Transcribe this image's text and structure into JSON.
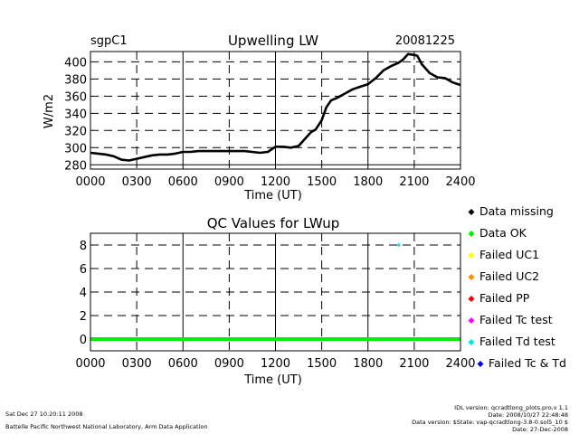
{
  "chart_data": [
    {
      "type": "line",
      "site": "sgpC1",
      "title": "Upwelling LW",
      "date": "20081225",
      "ylabel": "W/m2",
      "xlabel": "Time (UT)",
      "xlim": [
        0,
        2400
      ],
      "ylim": [
        275,
        412
      ],
      "yticks": [
        280,
        300,
        320,
        340,
        360,
        380,
        400
      ],
      "xtick_labels": [
        "0000",
        "0300",
        "0600",
        "0900",
        "1200",
        "1500",
        "1800",
        "2100",
        "2400"
      ],
      "grid": true,
      "series": [
        {
          "color": "#000000",
          "x": [
            0,
            50,
            100,
            150,
            200,
            250,
            300,
            350,
            400,
            450,
            500,
            550,
            600,
            650,
            700,
            800,
            900,
            1000,
            1100,
            1150,
            1200,
            1250,
            1300,
            1350,
            1400,
            1430,
            1460,
            1500,
            1530,
            1560,
            1600,
            1650,
            1700,
            1750,
            1800,
            1850,
            1900,
            1950,
            2000,
            2030,
            2060,
            2100,
            2120,
            2150,
            2200,
            2250,
            2300,
            2350,
            2400
          ],
          "y": [
            294,
            293,
            292,
            290,
            286,
            285,
            287,
            289,
            291,
            292,
            292,
            293,
            295,
            295,
            296,
            296,
            296,
            296,
            294,
            295,
            301,
            301,
            300,
            302,
            312,
            318,
            321,
            332,
            347,
            355,
            358,
            363,
            368,
            371,
            374,
            381,
            390,
            395,
            399,
            403,
            409,
            408,
            407,
            397,
            387,
            382,
            381,
            376,
            373
          ]
        }
      ]
    },
    {
      "type": "scatter",
      "title": "QC Values for LWup",
      "xlabel": "Time (UT)",
      "xlim": [
        0,
        2400
      ],
      "ylim": [
        -1,
        9
      ],
      "yticks": [
        0,
        2,
        4,
        6,
        8
      ],
      "xtick_labels": [
        "0000",
        "0300",
        "0600",
        "0900",
        "1200",
        "1500",
        "1800",
        "2100",
        "2400"
      ],
      "grid": true,
      "series": [
        {
          "name": "Data OK",
          "color": "#00ee00",
          "x": [
            0,
            2400
          ],
          "y": [
            0,
            0
          ]
        },
        {
          "name": "Failed Td test",
          "color": "#00e5e5",
          "x": [
            2000
          ],
          "y": [
            8
          ]
        }
      ]
    }
  ],
  "legend": {
    "items": [
      {
        "label": "Data missing",
        "color": "#000000"
      },
      {
        "label": "Data OK",
        "color": "#00ee00"
      },
      {
        "label": "Failed UC1",
        "color": "#ffff00"
      },
      {
        "label": "Failed UC2",
        "color": "#ff8c00"
      },
      {
        "label": "Failed PP",
        "color": "#ee0000"
      },
      {
        "label": "Failed Tc test",
        "color": "#ff00ff"
      },
      {
        "label": "Failed Td test",
        "color": "#00e5e5"
      },
      {
        "label": "Failed Tc & Td",
        "color": "#0000ee"
      }
    ]
  },
  "footer": {
    "timestamp": "Sat Dec 27 10:20:11 2008",
    "lab": "Battelle Pacific Northwest National Laboratory, Arm Data Application",
    "idl_version": "IDL version: qcradtlong_plots.pro,v 1.1",
    "idl_date": "Date: 2008/10/27 22:48:48",
    "data_version": "Data version: $State: vap-qcradtlong-3.8-0.sol5_10 $",
    "data_date": "Date: 27-Dec-2008"
  }
}
